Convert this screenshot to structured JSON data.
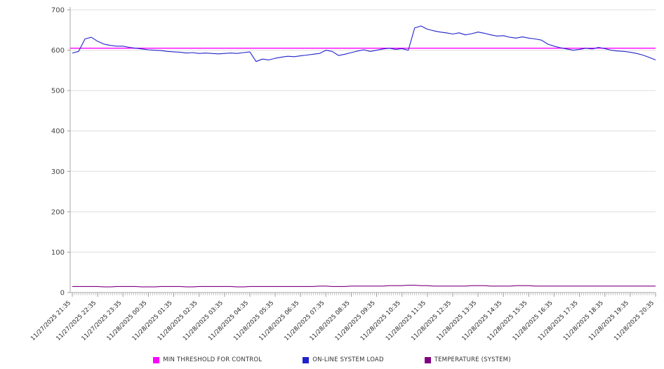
{
  "chart_data": {
    "type": "line",
    "title": "",
    "xlabel": "",
    "ylabel": "",
    "ylim": [
      0,
      700
    ],
    "y_ticks": [
      0,
      100,
      200,
      300,
      400,
      500,
      600,
      700
    ],
    "grid": "horizontal",
    "legend_position": "bottom",
    "points_per_tick": 4,
    "x_tick_labels": [
      "11/27/2025 21:35",
      "11/27/2025 22:35",
      "11/27/2025 23:35",
      "11/28/2025 00:35",
      "11/28/2025 01:35",
      "11/28/2025 02:35",
      "11/28/2025 03:35",
      "11/28/2025 04:35",
      "11/28/2025 05:35",
      "11/28/2025 06:35",
      "11/28/2025 07:35",
      "11/28/2025 08:35",
      "11/28/2025 09:35",
      "11/28/2025 10:35",
      "11/28/2025 11:35",
      "11/28/2025 12:35",
      "11/28/2025 13:35",
      "11/28/2025 14:35",
      "11/28/2025 15:35",
      "11/28/2025 16:35",
      "11/28/2025 17:35",
      "11/28/2025 18:35",
      "11/28/2025 19:35",
      "11/28/2025 20:35"
    ],
    "series": [
      {
        "name": "MIN THRESHOLD FOR CONTROL",
        "color": "#FF00FF",
        "constant": 605
      },
      {
        "name": "ON-LINE SYSTEM LOAD",
        "color": "#2222CC",
        "values": [
          593,
          597,
          628,
          632,
          622,
          615,
          612,
          610,
          610,
          607,
          605,
          603,
          601,
          600,
          599,
          597,
          596,
          595,
          593,
          594,
          592,
          593,
          592,
          591,
          592,
          593,
          592,
          594,
          596,
          572,
          578,
          576,
          580,
          583,
          585,
          584,
          586,
          588,
          590,
          592,
          600,
          597,
          587,
          590,
          594,
          598,
          601,
          597,
          600,
          603,
          605,
          602,
          604,
          600,
          655,
          660,
          652,
          648,
          645,
          643,
          640,
          643,
          638,
          641,
          645,
          642,
          638,
          635,
          636,
          632,
          630,
          633,
          630,
          628,
          625,
          615,
          610,
          606,
          603,
          600,
          602,
          605,
          603,
          607,
          604,
          600,
          598,
          597,
          595,
          592,
          588,
          582,
          576
        ]
      },
      {
        "name": "TEMPERATURE (SYSTEM)",
        "color": "#800080",
        "values": [
          15,
          15,
          15,
          15,
          15,
          14,
          14,
          15,
          15,
          15,
          15,
          14,
          14,
          14,
          15,
          15,
          15,
          15,
          14,
          14,
          15,
          15,
          15,
          15,
          15,
          15,
          14,
          14,
          15,
          15,
          15,
          15,
          15,
          15,
          15,
          15,
          15,
          15,
          15,
          16,
          16,
          15,
          15,
          15,
          16,
          16,
          16,
          16,
          16,
          16,
          17,
          17,
          17,
          18,
          18,
          17,
          17,
          16,
          16,
          16,
          16,
          16,
          16,
          17,
          17,
          17,
          16,
          16,
          16,
          16,
          17,
          17,
          17,
          16,
          16,
          16,
          16,
          16,
          16,
          16,
          16,
          16,
          16,
          16,
          16,
          16,
          16,
          16,
          16,
          16,
          16,
          16,
          16
        ]
      }
    ]
  }
}
